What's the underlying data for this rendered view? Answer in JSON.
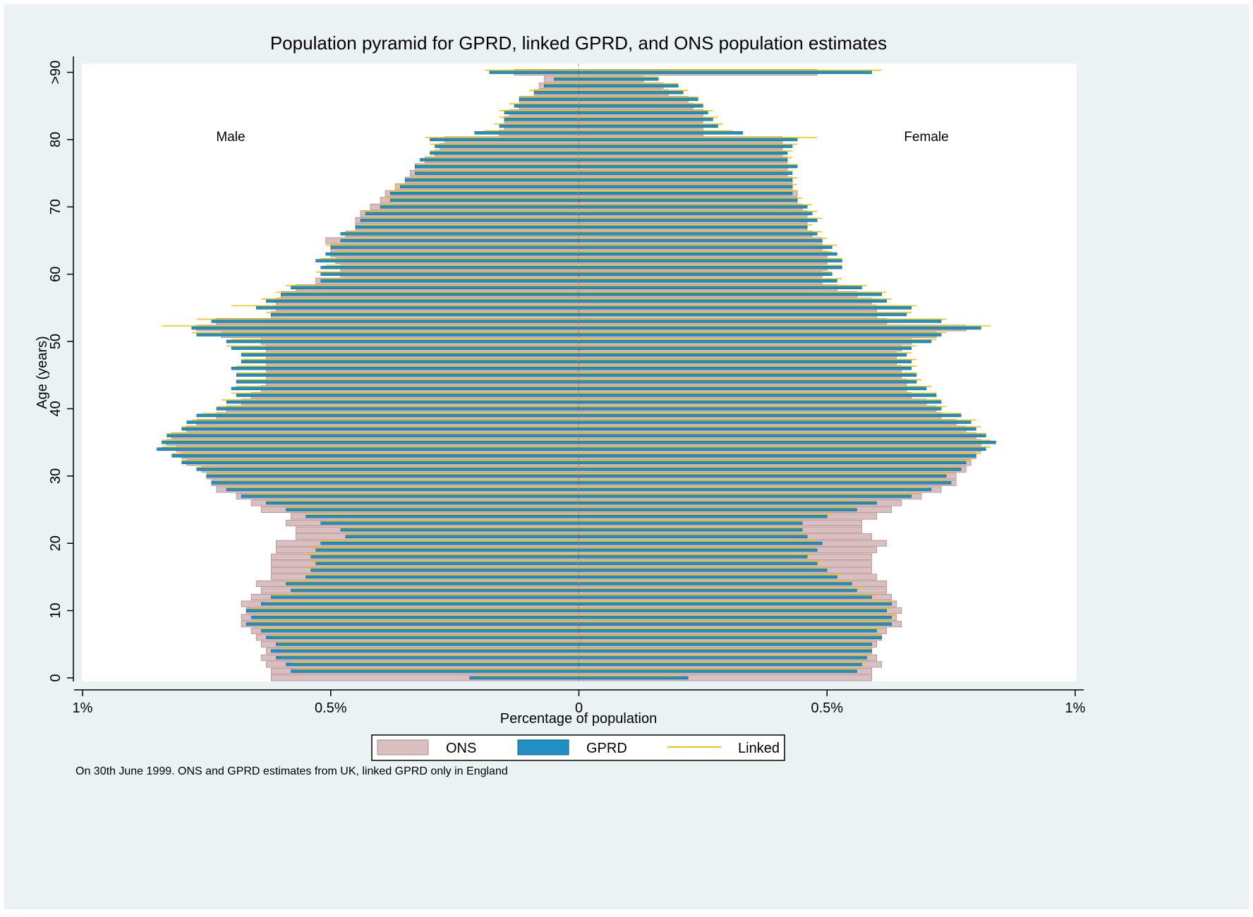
{
  "chart_data": {
    "type": "bar",
    "orientation": "horizontal",
    "title": "Population pyramid for GPRD, linked GPRD, and ONS population estimates",
    "xlabel": "Percentage of population",
    "ylabel": "Age (years)",
    "note": "On 30th June 1999. ONS and GPRD estimates from UK, linked GPRD only in England",
    "side_labels": {
      "left": "Male",
      "right": "Female"
    },
    "xlim": [
      -1,
      1
    ],
    "ylim": [
      0,
      91
    ],
    "x_ticks": [
      {
        "value": -1,
        "label": "1%"
      },
      {
        "value": -0.5,
        "label": "0.5%"
      },
      {
        "value": 0,
        "label": "0"
      },
      {
        "value": 0.5,
        "label": "0.5%"
      },
      {
        "value": 1,
        "label": "1%"
      }
    ],
    "y_ticks": [
      {
        "value": 0,
        "label": "0"
      },
      {
        "value": 10,
        "label": "10"
      },
      {
        "value": 20,
        "label": "20"
      },
      {
        "value": 30,
        "label": "30"
      },
      {
        "value": 40,
        "label": "40"
      },
      {
        "value": 50,
        "label": "50"
      },
      {
        "value": 60,
        "label": "60"
      },
      {
        "value": 70,
        "label": "70"
      },
      {
        "value": 80,
        "label": "80"
      },
      {
        "value": 90,
        "label": ">90"
      }
    ],
    "legend": {
      "placement": "bottom",
      "items": [
        "ONS",
        "GPRD",
        "Linked"
      ]
    },
    "colors": {
      "ons": "#d9bfbf",
      "ons_border": "#b08a8a",
      "gprd": "#1f8fc4",
      "gprd_edge": "#0f5f85",
      "linked": "#f2c418",
      "plot_bg": "#ffffff",
      "outer_bg": "#eaf2f3",
      "inner_bg": "#ffffff"
    },
    "ages": [
      0,
      1,
      2,
      3,
      4,
      5,
      6,
      7,
      8,
      9,
      10,
      11,
      12,
      13,
      14,
      15,
      16,
      17,
      18,
      19,
      20,
      21,
      22,
      23,
      24,
      25,
      26,
      27,
      28,
      29,
      30,
      31,
      32,
      33,
      34,
      35,
      36,
      37,
      38,
      39,
      40,
      41,
      42,
      43,
      44,
      45,
      46,
      47,
      48,
      49,
      50,
      51,
      52,
      53,
      54,
      55,
      56,
      57,
      58,
      59,
      60,
      61,
      62,
      63,
      64,
      65,
      66,
      67,
      68,
      69,
      70,
      71,
      72,
      73,
      74,
      75,
      76,
      77,
      78,
      79,
      80,
      81,
      82,
      83,
      84,
      85,
      86,
      87,
      88,
      89,
      90
    ],
    "series": [
      {
        "name": "ONS",
        "male": [
          0.62,
          0.62,
          0.63,
          0.64,
          0.63,
          0.64,
          0.65,
          0.66,
          0.68,
          0.68,
          0.67,
          0.68,
          0.66,
          0.64,
          0.65,
          0.62,
          0.62,
          0.62,
          0.62,
          0.61,
          0.61,
          0.57,
          0.57,
          0.59,
          0.58,
          0.64,
          0.66,
          0.69,
          0.73,
          0.74,
          0.75,
          0.76,
          0.79,
          0.8,
          0.81,
          0.83,
          0.82,
          0.79,
          0.77,
          0.73,
          0.71,
          0.68,
          0.66,
          0.64,
          0.63,
          0.63,
          0.63,
          0.63,
          0.63,
          0.63,
          0.64,
          0.72,
          0.77,
          0.73,
          0.62,
          0.61,
          0.61,
          0.6,
          0.57,
          0.53,
          0.48,
          0.48,
          0.49,
          0.5,
          0.5,
          0.51,
          0.47,
          0.45,
          0.45,
          0.44,
          0.42,
          0.4,
          0.39,
          0.37,
          0.35,
          0.34,
          0.33,
          0.31,
          0.29,
          0.28,
          0.27,
          0.16,
          0.15,
          0.15,
          0.14,
          0.12,
          0.12,
          0.09,
          0.08,
          0.07,
          0.13
        ],
        "female": [
          0.59,
          0.59,
          0.61,
          0.6,
          0.59,
          0.6,
          0.61,
          0.62,
          0.65,
          0.64,
          0.65,
          0.64,
          0.63,
          0.62,
          0.62,
          0.6,
          0.59,
          0.59,
          0.59,
          0.6,
          0.62,
          0.59,
          0.57,
          0.57,
          0.6,
          0.63,
          0.65,
          0.69,
          0.73,
          0.76,
          0.76,
          0.78,
          0.79,
          0.8,
          0.81,
          0.81,
          0.8,
          0.78,
          0.76,
          0.73,
          0.72,
          0.7,
          0.67,
          0.66,
          0.66,
          0.65,
          0.65,
          0.64,
          0.64,
          0.65,
          0.67,
          0.72,
          0.78,
          0.62,
          0.6,
          0.6,
          0.59,
          0.56,
          0.52,
          0.49,
          0.49,
          0.5,
          0.5,
          0.5,
          0.49,
          0.49,
          0.47,
          0.46,
          0.46,
          0.46,
          0.45,
          0.44,
          0.44,
          0.43,
          0.43,
          0.42,
          0.42,
          0.42,
          0.41,
          0.41,
          0.41,
          0.25,
          0.25,
          0.25,
          0.25,
          0.23,
          0.22,
          0.18,
          0.17,
          0.13,
          0.48
        ]
      },
      {
        "name": "GPRD",
        "male": [
          0.22,
          0.58,
          0.59,
          0.61,
          0.62,
          0.61,
          0.63,
          0.64,
          0.67,
          0.66,
          0.67,
          0.64,
          0.62,
          0.58,
          0.59,
          0.55,
          0.54,
          0.53,
          0.54,
          0.53,
          0.52,
          0.47,
          0.48,
          0.52,
          0.55,
          0.59,
          0.63,
          0.68,
          0.71,
          0.74,
          0.75,
          0.77,
          0.8,
          0.82,
          0.85,
          0.84,
          0.83,
          0.8,
          0.79,
          0.77,
          0.73,
          0.71,
          0.69,
          0.7,
          0.69,
          0.69,
          0.7,
          0.68,
          0.68,
          0.7,
          0.71,
          0.77,
          0.78,
          0.74,
          0.62,
          0.65,
          0.63,
          0.6,
          0.58,
          0.52,
          0.52,
          0.52,
          0.53,
          0.51,
          0.5,
          0.48,
          0.48,
          0.45,
          0.44,
          0.43,
          0.4,
          0.38,
          0.38,
          0.36,
          0.35,
          0.33,
          0.33,
          0.32,
          0.3,
          0.29,
          0.3,
          0.21,
          0.16,
          0.15,
          0.15,
          0.13,
          0.12,
          0.09,
          0.07,
          0.05,
          0.18
        ],
        "female": [
          0.22,
          0.56,
          0.57,
          0.58,
          0.59,
          0.59,
          0.61,
          0.6,
          0.63,
          0.63,
          0.62,
          0.63,
          0.59,
          0.56,
          0.55,
          0.52,
          0.5,
          0.48,
          0.46,
          0.48,
          0.49,
          0.46,
          0.45,
          0.45,
          0.5,
          0.56,
          0.6,
          0.67,
          0.71,
          0.75,
          0.74,
          0.77,
          0.78,
          0.8,
          0.82,
          0.84,
          0.82,
          0.8,
          0.79,
          0.77,
          0.73,
          0.73,
          0.72,
          0.7,
          0.68,
          0.68,
          0.67,
          0.67,
          0.66,
          0.67,
          0.71,
          0.73,
          0.81,
          0.73,
          0.66,
          0.67,
          0.62,
          0.61,
          0.57,
          0.52,
          0.51,
          0.53,
          0.53,
          0.52,
          0.51,
          0.49,
          0.48,
          0.46,
          0.48,
          0.47,
          0.46,
          0.44,
          0.43,
          0.43,
          0.43,
          0.43,
          0.44,
          0.42,
          0.42,
          0.43,
          0.44,
          0.33,
          0.28,
          0.27,
          0.26,
          0.25,
          0.24,
          0.21,
          0.2,
          0.16,
          0.59
        ]
      },
      {
        "name": "Linked",
        "male": [
          0.21,
          0.57,
          0.58,
          0.6,
          0.6,
          0.61,
          0.62,
          0.64,
          0.66,
          0.65,
          0.66,
          0.63,
          0.62,
          0.58,
          0.59,
          0.55,
          0.55,
          0.54,
          0.55,
          0.54,
          0.52,
          0.47,
          0.48,
          0.51,
          0.55,
          0.59,
          0.63,
          0.67,
          0.71,
          0.73,
          0.75,
          0.77,
          0.8,
          0.82,
          0.84,
          0.84,
          0.83,
          0.8,
          0.78,
          0.76,
          0.73,
          0.72,
          0.7,
          0.69,
          0.69,
          0.69,
          0.69,
          0.68,
          0.68,
          0.71,
          0.7,
          0.78,
          0.84,
          0.77,
          0.63,
          0.7,
          0.64,
          0.61,
          0.59,
          0.51,
          0.53,
          0.51,
          0.52,
          0.5,
          0.51,
          0.48,
          0.47,
          0.44,
          0.43,
          0.44,
          0.4,
          0.39,
          0.38,
          0.37,
          0.34,
          0.33,
          0.32,
          0.31,
          0.3,
          0.3,
          0.31,
          0.19,
          0.17,
          0.16,
          0.16,
          0.14,
          0.12,
          0.1,
          0.07,
          0.05,
          0.19
        ],
        "female": [
          0.21,
          0.56,
          0.58,
          0.58,
          0.59,
          0.59,
          0.61,
          0.61,
          0.63,
          0.64,
          0.63,
          0.63,
          0.6,
          0.57,
          0.55,
          0.53,
          0.5,
          0.49,
          0.47,
          0.48,
          0.48,
          0.46,
          0.45,
          0.45,
          0.51,
          0.56,
          0.6,
          0.68,
          0.7,
          0.74,
          0.75,
          0.77,
          0.79,
          0.81,
          0.83,
          0.83,
          0.82,
          0.81,
          0.8,
          0.77,
          0.74,
          0.73,
          0.72,
          0.71,
          0.69,
          0.68,
          0.68,
          0.68,
          0.67,
          0.68,
          0.72,
          0.74,
          0.83,
          0.74,
          0.67,
          0.68,
          0.63,
          0.62,
          0.58,
          0.53,
          0.51,
          0.53,
          0.53,
          0.51,
          0.52,
          0.5,
          0.49,
          0.47,
          0.49,
          0.48,
          0.47,
          0.45,
          0.44,
          0.44,
          0.44,
          0.43,
          0.44,
          0.43,
          0.43,
          0.44,
          0.48,
          0.31,
          0.29,
          0.28,
          0.27,
          0.25,
          0.24,
          0.22,
          0.2,
          0.16,
          0.61
        ]
      }
    ]
  }
}
